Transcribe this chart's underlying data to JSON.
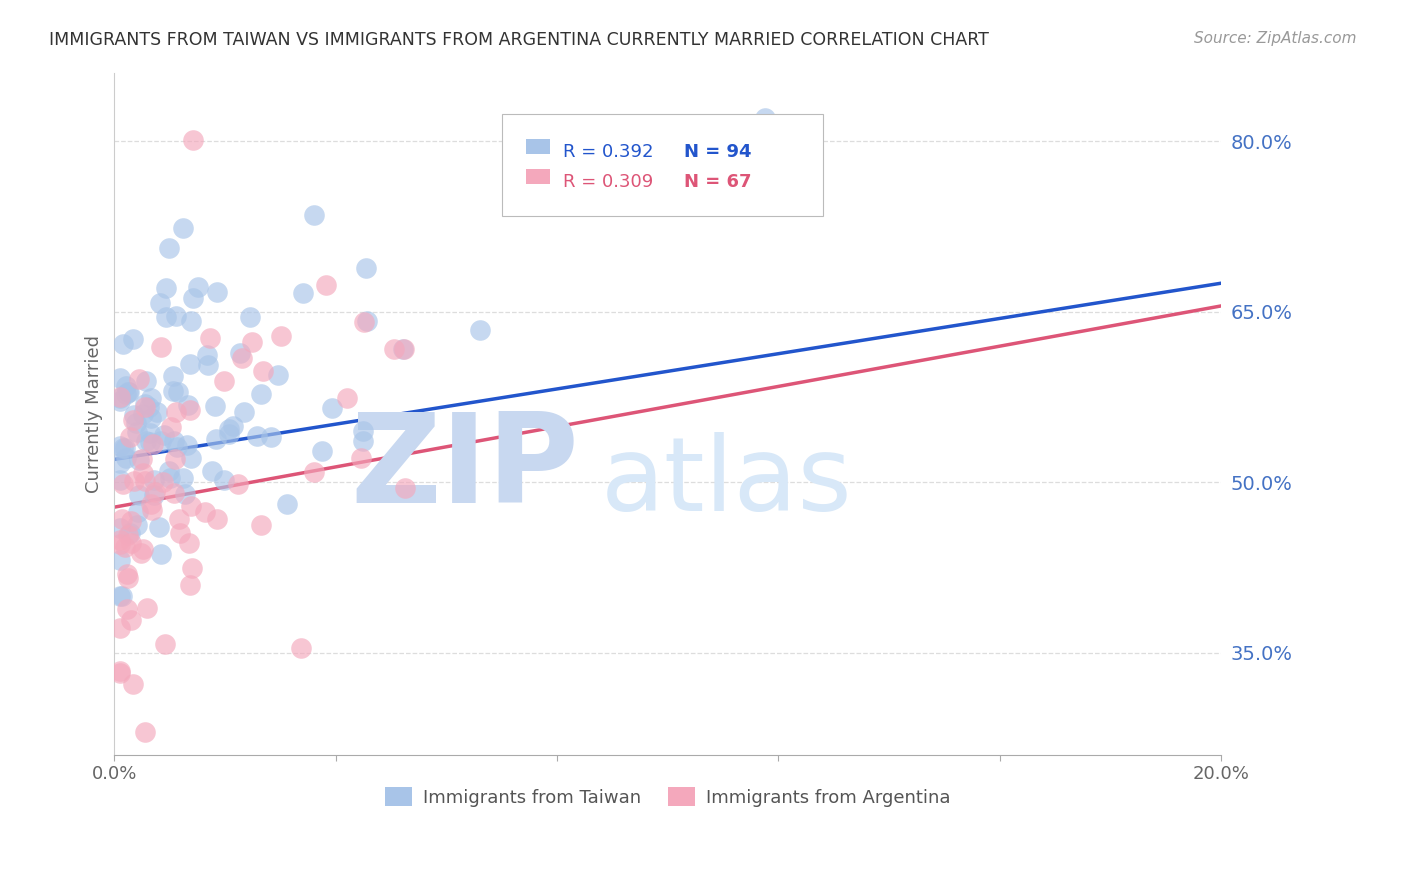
{
  "title": "IMMIGRANTS FROM TAIWAN VS IMMIGRANTS FROM ARGENTINA CURRENTLY MARRIED CORRELATION CHART",
  "source": "Source: ZipAtlas.com",
  "ylabel": "Currently Married",
  "y_ticks": [
    0.35,
    0.5,
    0.65,
    0.8
  ],
  "y_tick_labels": [
    "35.0%",
    "50.0%",
    "65.0%",
    "80.0%"
  ],
  "x_range": [
    0.0,
    0.2
  ],
  "y_range": [
    0.26,
    0.86
  ],
  "taiwan_R": 0.392,
  "taiwan_N": 94,
  "argentina_R": 0.309,
  "argentina_N": 67,
  "taiwan_color": "#A8C4E8",
  "argentina_color": "#F4A8BC",
  "taiwan_line_color": "#2255CC",
  "argentina_line_color": "#DD5577",
  "watermark_zip_color": "#C8D8F0",
  "watermark_atlas_color": "#D8E8F8",
  "background_color": "#FFFFFF",
  "title_color": "#333333",
  "source_color": "#999999",
  "right_axis_color": "#4472C4",
  "grid_color": "#DDDDDD",
  "tw_line_y0": 0.52,
  "tw_line_y1": 0.675,
  "ar_line_y0": 0.478,
  "ar_line_y1": 0.655
}
